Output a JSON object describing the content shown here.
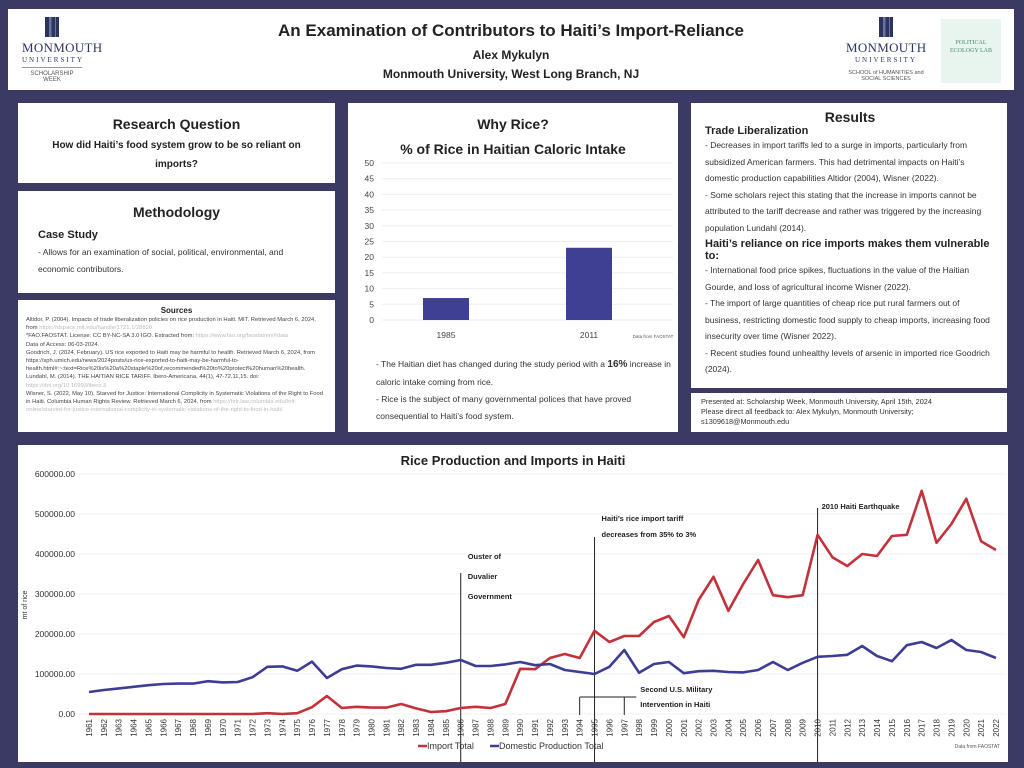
{
  "header": {
    "title": "An Examination of Contributors to Haiti’s Import-Reliance",
    "author": "Alex Mykulyn",
    "affiliation": "Monmouth University, West Long Branch, NJ",
    "logo_left": {
      "name": "MONMOUTH",
      "sub": "UNIVERSITY",
      "tag": "SCHOLARSHIP WEEK"
    },
    "logo_right": {
      "name": "MONMOUTH",
      "sub": "UNIVERSITY",
      "tag": "SCHOOL of HUMANITIES and SOCIAL SCIENCES"
    },
    "lab_logo": "POLITICAL ECOLOGY LAB"
  },
  "research": {
    "title": "Research Question",
    "question": "How did Haiti’s food system grow to be so reliant on imports?"
  },
  "methodology": {
    "title": "Methodology",
    "subtitle": "Case Study",
    "text": "- Allows for an examination of social, political, environmental, and economic contributors."
  },
  "sources": {
    "title": "Sources",
    "items": [
      {
        "text": "Altidor, P. (2004). Impacts of trade liberalization policies on rice production in Haiti. MIT. Retrieved March 6, 2024, from",
        "url": "https://dspace.mit.edu/handle/1721.1/28820"
      },
      {
        "text": "*FAO.FAOSTAT. License: CC BY-NC-SA 3.0 IGO. Extracted from:",
        "url": "https://www.fao.org/faostat/en/#data",
        "after": "Data of Access: 06-03-2024."
      },
      {
        "text": "Goodrich, J. (2024, February). US rice exported to Haiti may be harmful to health. Retrieved March 6, 2024, from https://sph.umich.edu/news/2024posts/us-rice-exported-to-haiti-may-be-harmful-to-health.html#:~:text=Rice%20is%20a%20staple%20of,recommended%20to%20protect%20human%20health.",
        "url": ""
      },
      {
        "text": "Lundahl, M. (2014). THE HAITIAN RICE TARIFF. Ibero-Americana, 44(1), 47-72,11,15. doi:",
        "url": "https://doi.org/10.16993/ibero.3"
      },
      {
        "text": "Wisner, S. (2022, May 10). Starved for Justice: International Complicity in Systematic Violations of the Right to Food in Haiti. Columbia Human Rights Review. Retrieved March 6, 2024, from",
        "url": "https://hrlr.law.columbia.edu/hrlr-online/starved-for-justice-international-complicity-in-systematic-violations-of-the-right-to-food-in-haiti/"
      }
    ]
  },
  "why_rice": {
    "title": "Why Rice?",
    "bullet1_pre": "- The Haitian diet has changed during the study period with a ",
    "bullet1_bold": "16%",
    "bullet1_post": " increase in caloric intake coming from rice.",
    "bullet2": "- Rice is the subject of many governmental polices that have proved consequential to Haiti’s food system."
  },
  "results": {
    "title": "Results",
    "sub1": "Trade Liberalization",
    "p1": "- Decreases in import tariffs led to a surge in imports, particularly from subsidized American farmers. This had detrimental impacts on Haiti’s domestic production capabilities Altidor (2004), Wisner (2022).",
    "p2": "- Some scholars reject this stating that the increase in imports cannot be attributed to the tariff decrease and rather was triggered by the increasing population Lundahl (2014).",
    "sub2": "Haiti’s reliance on rice imports makes them vulnerable to:",
    "p3": "- International food price spikes, fluctuations in the value of the Haitian Gourde, and loss of agricultural income Wisner (2022).",
    "p4": "- The import of large quantities of cheap rice put rural farmers out of business, restricting domestic food supply to cheap imports, increasing food insecurity over time (Wisner 2022).",
    "p5": "- Recent studies found unhealthy levels of arsenic in imported rice Goodrich (2024)."
  },
  "presented": {
    "line1": "Presented at: Scholarship Week, Monmouth University, April 15th, 2024",
    "line2": "Please direct all feedback to: Alex Mykulyn, Monmouth University; s1309618@Monmouth.edu"
  },
  "colors": {
    "background": "#3a3a64",
    "import": "#c3313b",
    "domestic": "#3d3d95",
    "bar": "#3f3f94"
  },
  "chart_data": [
    {
      "type": "bar",
      "title": "% of Rice in Haitian Caloric Intake",
      "categories": [
        "1985",
        "2011"
      ],
      "values": [
        7,
        23
      ],
      "ylim": [
        0,
        50
      ],
      "yticks": [
        0,
        5,
        10,
        15,
        20,
        25,
        30,
        35,
        40,
        45,
        50
      ],
      "grid": true,
      "note": "Data from FAOSTAT"
    },
    {
      "type": "line",
      "title": "Rice Production and Imports in Haiti",
      "ylabel": "mt of rice",
      "xlabel": "",
      "ylim": [
        0,
        600000
      ],
      "yticks": [
        "0.00",
        "100000.00",
        "200000.00",
        "300000.00",
        "400000.00",
        "500000.00",
        "600000.00"
      ],
      "x": [
        1961,
        1962,
        1963,
        1964,
        1965,
        1966,
        1967,
        1968,
        1969,
        1970,
        1971,
        1972,
        1973,
        1974,
        1975,
        1976,
        1977,
        1978,
        1979,
        1980,
        1981,
        1982,
        1983,
        1984,
        1985,
        1986,
        1987,
        1988,
        1989,
        1990,
        1991,
        1992,
        1993,
        1994,
        1995,
        1996,
        1997,
        1998,
        1999,
        2000,
        2001,
        2002,
        2003,
        2004,
        2005,
        2006,
        2007,
        2008,
        2009,
        2010,
        2011,
        2012,
        2013,
        2014,
        2015,
        2016,
        2017,
        2018,
        2019,
        2020,
        2021,
        2022
      ],
      "series": [
        {
          "name": "Import Total",
          "color": "#c3313b",
          "values": [
            0,
            0,
            0,
            0,
            0,
            0,
            0,
            0,
            0,
            0,
            0,
            0,
            2000,
            0,
            2000,
            17000,
            45000,
            15000,
            18000,
            16000,
            16000,
            25000,
            14000,
            5000,
            7000,
            15000,
            18000,
            15000,
            25000,
            113000,
            112000,
            140000,
            150000,
            140000,
            208000,
            180000,
            195000,
            195000,
            230000,
            245000,
            192000,
            285000,
            343000,
            258000,
            325000,
            385000,
            297000,
            292000,
            297000,
            448000,
            392000,
            370000,
            400000,
            395000,
            445000,
            448000,
            558000,
            428000,
            475000,
            538000,
            432000,
            410000
          ]
        },
        {
          "name": "Domestic Production Total",
          "color": "#3d3d95",
          "values": [
            55000,
            60000,
            64000,
            68000,
            72000,
            75000,
            76000,
            76000,
            82000,
            79000,
            80000,
            92000,
            118000,
            119000,
            108000,
            131000,
            90000,
            112000,
            121000,
            119000,
            115000,
            113000,
            123000,
            123000,
            128000,
            135000,
            120000,
            120000,
            124000,
            130000,
            122000,
            125000,
            110000,
            105000,
            100000,
            118000,
            160000,
            103000,
            125000,
            130000,
            102000,
            107000,
            108000,
            105000,
            104000,
            110000,
            130000,
            110000,
            128000,
            143000,
            145000,
            148000,
            170000,
            145000,
            132000,
            172000,
            180000,
            165000,
            185000,
            160000,
            155000,
            140000
          ]
        }
      ],
      "annotations": [
        {
          "year": 1986,
          "text": [
            "Ouster of",
            "Duvalier",
            "Government"
          ]
        },
        {
          "year": 1995,
          "text": [
            "Haiti’s rice import tariff",
            "decreases from 35% to 3%"
          ]
        },
        {
          "year": 2010,
          "text": [
            "2010 Haiti Earthquake"
          ]
        },
        {
          "range": [
            1994,
            1997
          ],
          "text": [
            "Second U.S. Military",
            "Intervention in Haiti"
          ]
        }
      ],
      "legend": "bottom",
      "note": "Data from FAOSTAT"
    }
  ]
}
